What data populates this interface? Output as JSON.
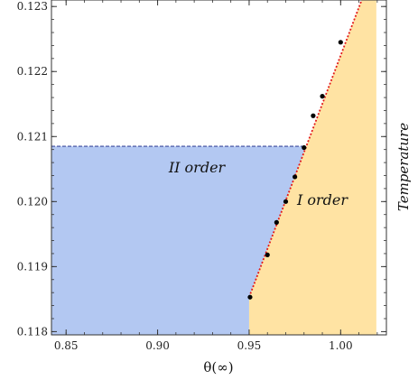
{
  "chart_data": {
    "type": "scatter",
    "xlabel": "θ(∞)",
    "ylabel": "Temperature",
    "xlim": [
      0.842,
      1.025
    ],
    "ylim": [
      0.11795,
      0.1231
    ],
    "x_ticks": [
      0.85,
      0.9,
      0.95,
      1.0
    ],
    "x_tick_labels": [
      "0.85",
      "0.90",
      "0.95",
      "1.00"
    ],
    "y_ticks": [
      0.118,
      0.119,
      0.12,
      0.121,
      0.122,
      0.123
    ],
    "y_tick_labels": [
      "0.118",
      "0.119",
      "0.120",
      "0.121",
      "0.122",
      "0.123"
    ],
    "grid": false,
    "regions": [
      {
        "label": "II order",
        "color": "#b3c8f2",
        "boundary_temperature": 0.12085,
        "x_max": 0.95
      },
      {
        "label": "I order",
        "color": "#ffe3a3",
        "x_max": 1.0195
      }
    ],
    "second_order_line": {
      "y": 0.12085,
      "x_range": [
        0.842,
        0.98
      ],
      "color": "#3b4a9c"
    },
    "first_order_fit": {
      "x": [
        0.95,
        1.0115
      ],
      "y": [
        0.11853,
        0.1231
      ],
      "color": "#e21b1b"
    },
    "points": {
      "x": [
        0.9505,
        0.96,
        0.965,
        0.97,
        0.975,
        0.98,
        0.985,
        0.99,
        1.0
      ],
      "y": [
        0.11853,
        0.11918,
        0.11968,
        0.12,
        0.12038,
        0.12083,
        0.12132,
        0.12162,
        0.12245
      ],
      "color": "#000000"
    }
  }
}
